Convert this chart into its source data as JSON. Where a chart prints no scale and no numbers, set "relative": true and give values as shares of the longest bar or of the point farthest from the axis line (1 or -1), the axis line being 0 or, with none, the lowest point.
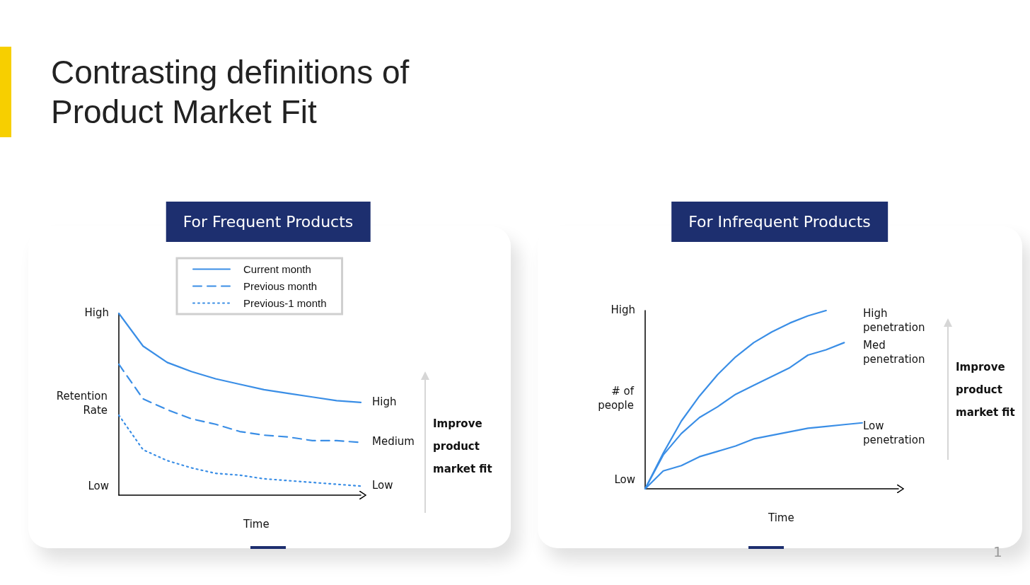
{
  "chart_data": [
    {
      "type": "line",
      "title": "Contrasting definitions of Product Market Fit",
      "subtitle": "For Frequent Products",
      "xlabel": "Time",
      "ylabel": "Retention Rate",
      "relative": true,
      "legend": "top",
      "grid": false,
      "marker": "none",
      "categories": [
        null,
        null,
        null,
        null,
        null,
        null,
        null,
        null,
        null,
        null,
        null
      ],
      "series": [
        {
          "name": "Current month",
          "color": "#3a8ee6",
          "line_style": "solid",
          "values": [
            1,
            0.82,
            0.73,
            0.68,
            0.64,
            0.61,
            0.58,
            0.56,
            0.54,
            0.52,
            0.51
          ]
        },
        {
          "name": "Previous month",
          "color": "#3a8ee6",
          "line_style": "dashed",
          "values": [
            0.72,
            0.53,
            0.47,
            0.42,
            0.39,
            0.35,
            0.33,
            0.32,
            0.3,
            0.3,
            0.29
          ]
        },
        {
          "name": "Previous-1 month",
          "color": "#3a8ee6",
          "line_style": "dotted",
          "values": [
            0.44,
            0.25,
            0.19,
            0.15,
            0.12,
            0.11,
            0.09,
            0.08,
            0.07,
            0.06,
            0.05
          ]
        }
      ],
      "annotations": [
        "High",
        "Low",
        "Improve product market fit",
        "High",
        "Medium",
        "Low"
      ]
    },
    {
      "type": "line",
      "subtitle": "For Infrequent Products",
      "xlabel": "Time",
      "ylabel": "# of people",
      "relative": true,
      "grid": false,
      "marker": "none",
      "categories": [
        null,
        null,
        null,
        null,
        null,
        null,
        null,
        null,
        null,
        null,
        null,
        null,
        null,
        null,
        null
      ],
      "series": [
        {
          "name": "High penetration",
          "color": "#3a8ee6",
          "values": [
            0,
            0.2,
            0.38,
            0.52,
            0.64,
            0.74,
            0.82,
            0.88,
            0.93,
            0.97,
            1,
            null,
            null,
            null,
            null
          ]
        },
        {
          "name": "Med penetration",
          "color": "#3a8ee6",
          "values": [
            0,
            0.19,
            0.31,
            0.4,
            0.46,
            0.53,
            0.58,
            0.63,
            0.68,
            0.75,
            0.78,
            0.82,
            null,
            null,
            null
          ]
        },
        {
          "name": "Low penetration",
          "color": "#3a8ee6",
          "values": [
            0,
            0.1,
            0.13,
            0.18,
            0.21,
            0.24,
            0.28,
            0.3,
            0.32,
            0.34,
            0.35,
            0.36,
            0.37,
            null,
            null
          ]
        }
      ],
      "annotations": [
        "High",
        "Low",
        "Improve product market fit",
        "1"
      ]
    }
  ]
}
